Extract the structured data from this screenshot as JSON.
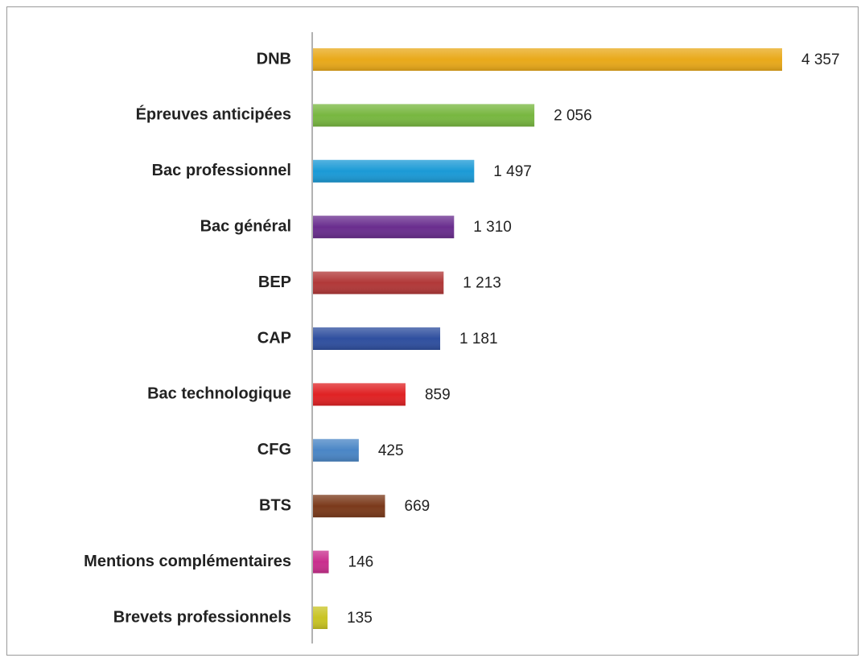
{
  "chart_data": {
    "type": "bar",
    "orientation": "horizontal",
    "categories": [
      "DNB",
      "Épreuves anticipées",
      "Bac professionnel",
      "Bac général",
      "BEP",
      "CAP",
      "Bac technologique",
      "CFG",
      "BTS",
      "Mentions complémentaires",
      "Brevets professionnels"
    ],
    "values": [
      4357,
      2056,
      1497,
      1310,
      1213,
      1181,
      859,
      425,
      669,
      146,
      135
    ],
    "value_labels": [
      "4 357",
      "2 056",
      "1 497",
      "1 310",
      "1 213",
      "1 181",
      "859",
      "425",
      "669",
      "146",
      "135"
    ],
    "colors": [
      "#e9a91a",
      "#78b740",
      "#1b9ad6",
      "#6a2e8e",
      "#b13838",
      "#2f4f9f",
      "#e02224",
      "#4a86c6",
      "#7b3a1b",
      "#c92e8d",
      "#c9c424"
    ]
  }
}
